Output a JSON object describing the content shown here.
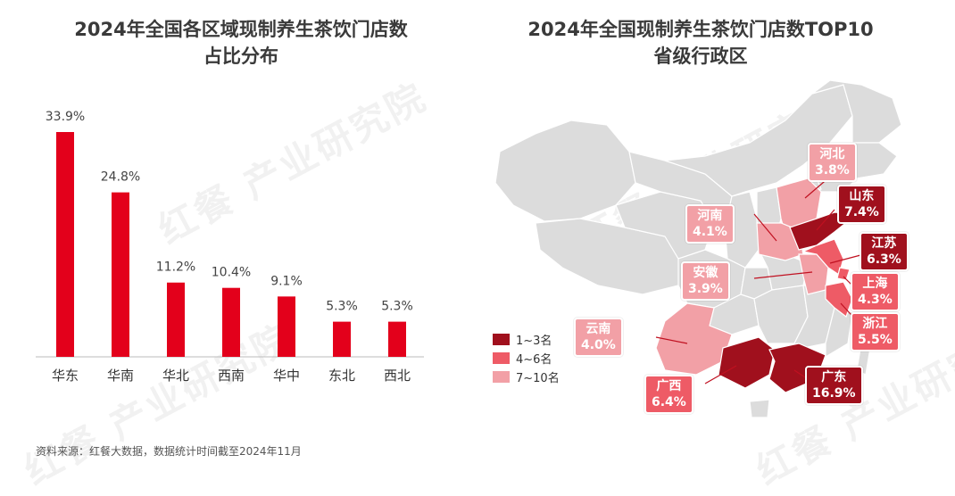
{
  "left_title": "2024年全国各区域现制养生茶饮门店数\n占比分布",
  "right_title": "2024年全国现制养生茶饮门店数TOP10\n省级行政区",
  "source": "资料来源：红餐大数据，数据统计时间截至2024年11月",
  "watermark": "红餐 产业研究院",
  "colors": {
    "bar": "#e3001b",
    "rank1_3": "#a0101d",
    "rank4_6": "#ee5b66",
    "rank7_10": "#f2a0a6",
    "map_base": "#dcdcdc"
  },
  "chart_data": [
    {
      "type": "bar",
      "title": "2024年全国各区域现制养生茶饮门店数占比分布",
      "categories": [
        "华东",
        "华南",
        "华北",
        "西南",
        "华中",
        "东北",
        "西北"
      ],
      "values": [
        33.9,
        24.8,
        11.2,
        10.4,
        9.1,
        5.3,
        5.3
      ],
      "value_labels": [
        "33.9%",
        "24.8%",
        "11.2%",
        "10.4%",
        "9.1%",
        "5.3%",
        "5.3%"
      ],
      "unit": "%",
      "grid": false
    },
    {
      "type": "map",
      "title": "2024年全国现制养生茶饮门店数TOP10省级行政区",
      "legend": [
        "1~3名",
        "4~6名",
        "7~10名"
      ],
      "provinces": [
        {
          "name": "广东",
          "value": "16.9%",
          "tier": 1
        },
        {
          "name": "山东",
          "value": "7.4%",
          "tier": 1
        },
        {
          "name": "广西",
          "value": "6.4%",
          "tier": 1
        },
        {
          "name": "江苏",
          "value": "6.3%",
          "tier": 2
        },
        {
          "name": "浙江",
          "value": "5.5%",
          "tier": 2
        },
        {
          "name": "上海",
          "value": "4.3%",
          "tier": 2
        },
        {
          "name": "河南",
          "value": "4.1%",
          "tier": 3
        },
        {
          "name": "云南",
          "value": "4.0%",
          "tier": 3
        },
        {
          "name": "安徽",
          "value": "3.9%",
          "tier": 3
        },
        {
          "name": "河北",
          "value": "3.8%",
          "tier": 3
        }
      ]
    }
  ]
}
